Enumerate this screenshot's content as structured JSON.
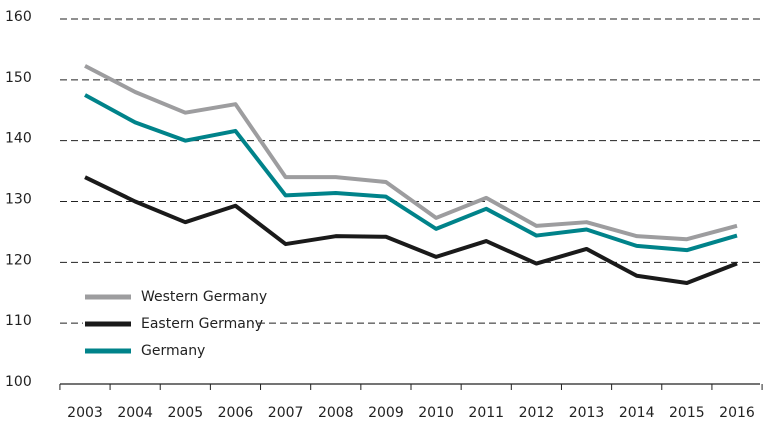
{
  "chart_data": {
    "type": "line",
    "categories": [
      "2003",
      "2004",
      "2005",
      "2006",
      "2007",
      "2008",
      "2009",
      "2010",
      "2011",
      "2012",
      "2013",
      "2014",
      "2015",
      "2016"
    ],
    "series": [
      {
        "name": "Western Germany",
        "color": "#9d9d9f",
        "values": [
          152.3,
          148,
          144.6,
          146,
          134,
          134,
          133.2,
          127.3,
          130.6,
          126,
          126.6,
          124.3,
          123.8,
          126
        ]
      },
      {
        "name": "Eastern Germany",
        "color": "#1a1a1a",
        "values": [
          134,
          130,
          126.6,
          129.3,
          123,
          124.3,
          124.2,
          120.9,
          123.5,
          119.8,
          122.2,
          117.8,
          116.6,
          119.8
        ]
      },
      {
        "name": "Germany",
        "color": "#00838a",
        "values": [
          147.5,
          143,
          140,
          141.6,
          131,
          131.4,
          130.8,
          125.5,
          128.8,
          124.4,
          125.4,
          122.7,
          122,
          124.4
        ]
      }
    ],
    "ylim": [
      100,
      160
    ],
    "yticks": [
      100,
      110,
      120,
      130,
      140,
      150,
      160
    ],
    "grid": true,
    "legend": "lower left"
  }
}
